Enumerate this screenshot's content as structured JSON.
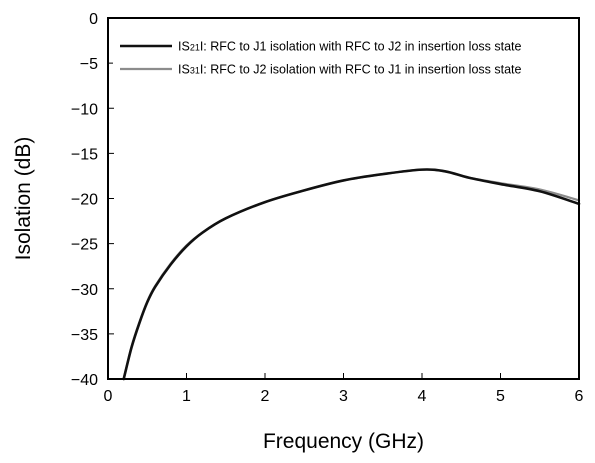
{
  "chart_data": {
    "type": "line",
    "xlabel": "Frequency (GHz)",
    "ylabel": "Isolation (dB)",
    "xlim": [
      0,
      6
    ],
    "ylim": [
      -40,
      0
    ],
    "x_ticks": [
      0,
      1,
      2,
      3,
      4,
      5,
      6
    ],
    "y_ticks": [
      0,
      -5,
      -10,
      -15,
      -20,
      -25,
      -30,
      -35,
      -40
    ],
    "y_tick_labels": [
      "0",
      "−5",
      "−10",
      "−15",
      "−20",
      "−25",
      "−30",
      "−35",
      "−40"
    ],
    "grid": false,
    "legend_placement": "top-right",
    "series": [
      {
        "name": "|S21|: RFC to J1 isolation with RFC to J2 in insertion loss state",
        "legend_prefix": "IS",
        "legend_sub": "21",
        "legend_suffix": "I: RFC to J1 isolation with RFC to J2 in insertion loss state",
        "color": "#111111",
        "x": [
          0.2,
          0.3,
          0.4,
          0.5,
          0.6,
          0.8,
          1.0,
          1.2,
          1.5,
          2.0,
          2.5,
          3.0,
          3.5,
          4.0,
          4.3,
          4.6,
          5.0,
          5.5,
          6.0
        ],
        "y": [
          -40,
          -36.5,
          -33.8,
          -31.5,
          -29.8,
          -27.3,
          -25.3,
          -23.8,
          -22.2,
          -20.4,
          -19.1,
          -18.0,
          -17.3,
          -16.8,
          -17.0,
          -17.7,
          -18.4,
          -19.2,
          -20.6
        ]
      },
      {
        "name": "|S31|: RFC to J2 isolation with RFC to J1 in insertion loss state",
        "legend_prefix": "IS",
        "legend_sub": "31",
        "legend_suffix": "I: RFC to J2 isolation with RFC to J1 in insertion loss state",
        "color": "#8c8c8c",
        "x": [
          0.2,
          0.3,
          0.4,
          0.5,
          0.6,
          0.8,
          1.0,
          1.2,
          1.5,
          2.0,
          2.5,
          3.0,
          3.5,
          4.0,
          4.3,
          4.6,
          5.0,
          5.5,
          6.0
        ],
        "y": [
          -40,
          -36.4,
          -33.7,
          -31.4,
          -29.7,
          -27.2,
          -25.2,
          -23.8,
          -22.2,
          -20.4,
          -19.1,
          -18.0,
          -17.3,
          -16.8,
          -17.0,
          -17.7,
          -18.3,
          -19.0,
          -20.2
        ]
      }
    ]
  }
}
